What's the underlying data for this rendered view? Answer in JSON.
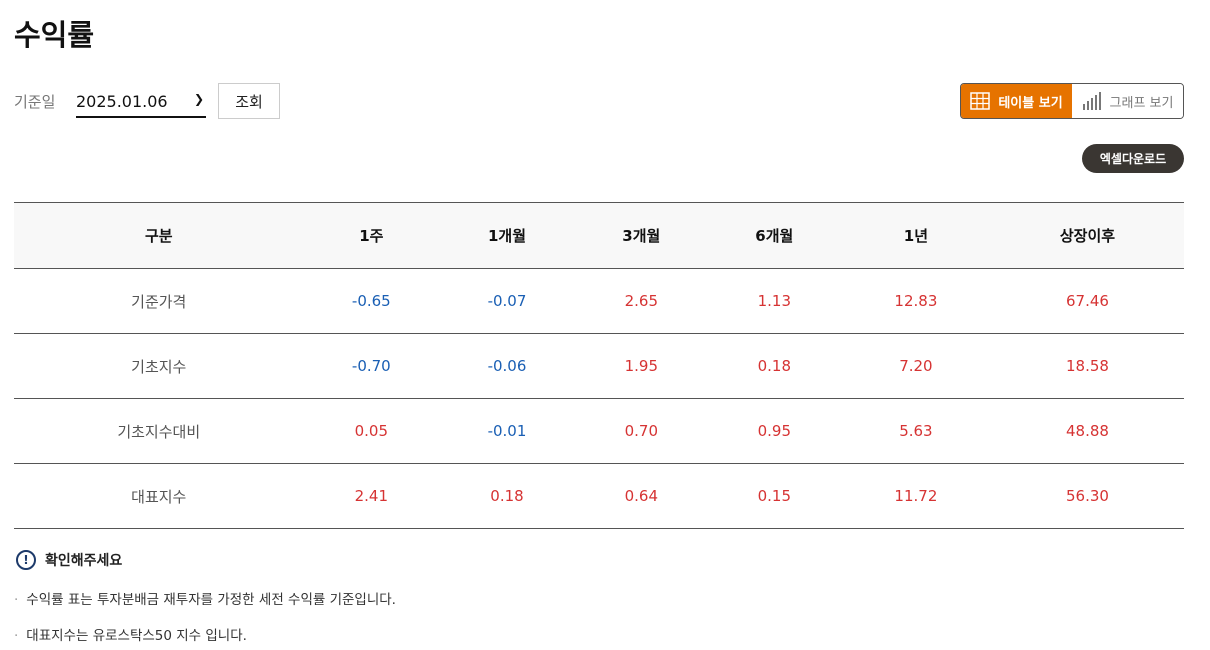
{
  "title": "수익률",
  "filter": {
    "label": "기준일",
    "date": "2025.01.06",
    "search": "조회"
  },
  "view": {
    "table": "테이블 보기",
    "graph": "그래프 보기",
    "accent": "#e67300"
  },
  "download": "엑셀다운로드",
  "table": {
    "headers": [
      "구분",
      "1주",
      "1개월",
      "3개월",
      "6개월",
      "1년",
      "상장이후"
    ],
    "rows": [
      {
        "name": "기준가격",
        "values": [
          "-0.65",
          "-0.07",
          "2.65",
          "1.13",
          "12.83",
          "67.46"
        ]
      },
      {
        "name": "기초지수",
        "values": [
          "-0.70",
          "-0.06",
          "1.95",
          "0.18",
          "7.20",
          "18.58"
        ]
      },
      {
        "name": "기초지수대비",
        "values": [
          "0.05",
          "-0.01",
          "0.70",
          "0.95",
          "5.63",
          "48.88"
        ]
      },
      {
        "name": "대표지수",
        "values": [
          "2.41",
          "0.18",
          "0.64",
          "0.15",
          "11.72",
          "56.30"
        ]
      }
    ]
  },
  "notice": {
    "title": "확인해주세요",
    "items": [
      "수익률 표는 투자분배금 재투자를 가정한 세전 수익률 기준입니다.",
      "대표지수는 유로스탁스50 지수 입니다."
    ]
  }
}
